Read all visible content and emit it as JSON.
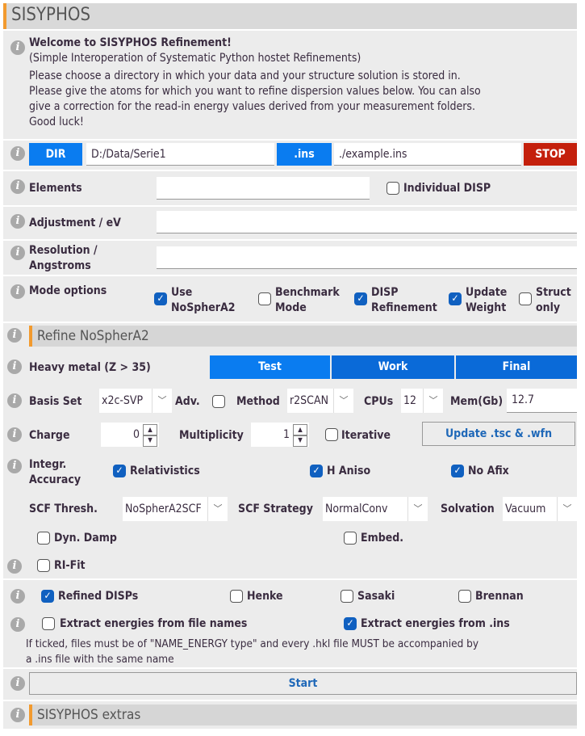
{
  "title": "SISYPHOS",
  "welcome": {
    "heading": "Welcome to SISYPHOS Refinement!",
    "lines": [
      "(Simple Interoperation of Systematic Python hostet Refinements)",
      "Please choose a directory in which your data and your structure solution is stored in.",
      "Please give the atoms for which you want to refine dispersion values below. You can also",
      "give a correction for the read-in energy values derived from your measurement folders.",
      "Good luck!"
    ]
  },
  "dir": {
    "button": "DIR",
    "value": "D:/Data/Serie1",
    "ins_button": ".ins",
    "ins_value": "./example.ins",
    "stop": "STOP"
  },
  "elements": {
    "label": "Elements",
    "value": "",
    "individual": "Individual DISP",
    "individual_checked": false
  },
  "adjustment": {
    "label": "Adjustment / eV",
    "value": ""
  },
  "resolution": {
    "label1": "Resolution /",
    "label2": "Angstroms",
    "value": ""
  },
  "mode": {
    "label": "Mode options",
    "options": [
      {
        "l1": "Use",
        "l2": "NoSpherA2",
        "checked": true
      },
      {
        "l1": "Benchmark",
        "l2": "Mode",
        "checked": false
      },
      {
        "l1": "DISP",
        "l2": "Refinement",
        "checked": true
      },
      {
        "l1": "Update",
        "l2": "Weight",
        "checked": true
      },
      {
        "l1": "Struct",
        "l2": "only",
        "checked": false
      }
    ]
  },
  "nosphera2": {
    "title": "Refine NoSpherA2",
    "heavy": {
      "label": "Heavy metal (Z > 35)",
      "buttons": [
        "Test",
        "Work",
        "Final"
      ]
    },
    "basis": {
      "label": "Basis Set",
      "value": "x2c-SVP",
      "adv": "Adv.",
      "adv_checked": false,
      "method_label": "Method",
      "method": "r2SCAN",
      "cpus_label": "CPUs",
      "cpus": "12",
      "mem_label": "Mem(Gb)",
      "mem": "12.7"
    },
    "charge": {
      "label": "Charge",
      "value": "0",
      "mult_label": "Multiplicity",
      "mult": "1",
      "iterative": "Iterative",
      "iterative_checked": false,
      "update": "Update .tsc & .wfn"
    },
    "integr": {
      "label1": "Integr.",
      "label2": "Accuracy",
      "relativistics": "Relativistics",
      "h_aniso": "H Aniso",
      "no_afix": "No Afix"
    },
    "scf": {
      "thresh_label": "SCF Thresh.",
      "thresh": "NoSpherA2SCF",
      "strategy_label": "SCF Strategy",
      "strategy": "NormalConv",
      "solvation_label": "Solvation",
      "solvation": "Vacuum"
    },
    "dyn_damp": "Dyn. Damp",
    "embed": "Embed.",
    "ri_fit": "RI-Fit"
  },
  "disp_sources": [
    {
      "label": "Refined DISPs",
      "checked": true
    },
    {
      "label": "Henke",
      "checked": false
    },
    {
      "label": "Sasaki",
      "checked": false
    },
    {
      "label": "Brennan",
      "checked": false
    }
  ],
  "extract": {
    "names": "Extract energies from file names",
    "names_checked": false,
    "ins": "Extract energies from .ins",
    "ins_checked": true,
    "note1": "If ticked, files must be of \"NAME_ENERGY type\" and every .hkl file MUST be accompanied by",
    "note2": "a .ins file with the same name"
  },
  "start": "Start",
  "extras": "SISYPHOS extras",
  "colors": {
    "blue": "#0a7cf0",
    "stop": "#c4200c",
    "accent": "#f29a2e"
  }
}
